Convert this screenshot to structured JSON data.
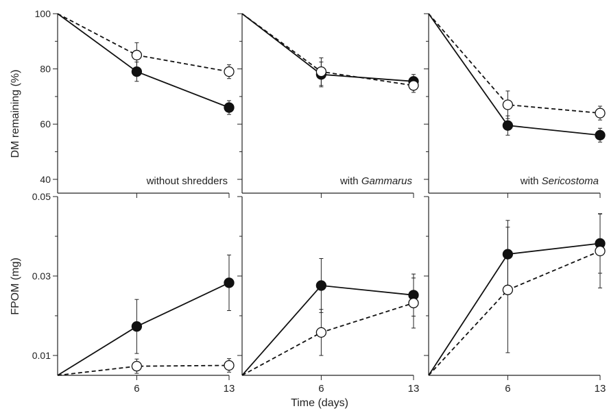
{
  "figure": {
    "xlabel": "Time (days)",
    "ylabel_top": "DM remaining (%)",
    "ylabel_bottom": "FPOM (mg)"
  },
  "chart_data": [
    {
      "type": "line",
      "row": "top",
      "col": 0,
      "label": "without shredders",
      "label_italic": "",
      "x": [
        0,
        6,
        13
      ],
      "xticks": [
        6,
        13
      ],
      "xlim": [
        0,
        13
      ],
      "ylim": [
        35,
        100
      ],
      "yticks": [
        40,
        60,
        80,
        100
      ],
      "ytick_labels": [
        "40",
        "60",
        "80",
        "100"
      ],
      "yminor": [
        50,
        70,
        90
      ],
      "series": [
        {
          "style": "solid-filled",
          "values": [
            100,
            79,
            66
          ],
          "err": [
            0,
            3.5,
            2.5
          ]
        },
        {
          "style": "dashed-open",
          "values": [
            100,
            85,
            79
          ],
          "err": [
            0,
            4.5,
            2.5
          ]
        }
      ]
    },
    {
      "type": "line",
      "row": "top",
      "col": 1,
      "label": "with ",
      "label_italic": "Gammarus",
      "x": [
        0,
        6,
        13
      ],
      "xticks": [
        6,
        13
      ],
      "xlim": [
        0,
        13
      ],
      "ylim": [
        35,
        100
      ],
      "yticks": [
        40,
        60,
        80,
        100
      ],
      "ytick_labels": [],
      "yminor": [
        50,
        70,
        90
      ],
      "series": [
        {
          "style": "solid-filled",
          "values": [
            100,
            78,
            75.5
          ],
          "err": [
            0,
            4.5,
            2.5
          ]
        },
        {
          "style": "dashed-open",
          "values": [
            100,
            79,
            74
          ],
          "err": [
            0,
            5,
            2.5
          ]
        }
      ]
    },
    {
      "type": "line",
      "row": "top",
      "col": 2,
      "label": "with ",
      "label_italic": "Sericostoma",
      "x": [
        0,
        6,
        13
      ],
      "xticks": [
        6,
        13
      ],
      "xlim": [
        0,
        13
      ],
      "ylim": [
        35,
        100
      ],
      "yticks": [
        40,
        60,
        80,
        100
      ],
      "ytick_labels": [],
      "yminor": [
        50,
        70,
        90
      ],
      "series": [
        {
          "style": "solid-filled",
          "values": [
            100,
            59.5,
            56
          ],
          "err": [
            0,
            3.5,
            2.5
          ]
        },
        {
          "style": "dashed-open",
          "values": [
            100,
            67,
            64
          ],
          "err": [
            0,
            5,
            2.5
          ]
        }
      ]
    },
    {
      "type": "line",
      "row": "bottom",
      "col": 0,
      "label": "",
      "label_italic": "",
      "x": [
        0,
        6,
        13
      ],
      "xticks": [
        6,
        13
      ],
      "xtick_labels": [
        "6",
        "13"
      ],
      "xlim": [
        0,
        13
      ],
      "ylim": [
        0.005,
        0.05
      ],
      "yticks": [
        0.01,
        0.03,
        0.05
      ],
      "ytick_labels": [
        "0.01",
        "0.03",
        "0.05"
      ],
      "yminor": [
        0.02,
        0.04
      ],
      "series": [
        {
          "style": "solid-filled",
          "values": [
            0.005,
            0.0173,
            0.0283
          ],
          "err": [
            0,
            0.0068,
            0.007
          ]
        },
        {
          "style": "dashed-open",
          "values": [
            0.005,
            0.0073,
            0.0075
          ],
          "err": [
            0,
            0.0018,
            0.0017
          ]
        }
      ]
    },
    {
      "type": "line",
      "row": "bottom",
      "col": 1,
      "label": "",
      "label_italic": "",
      "x": [
        0,
        6,
        13
      ],
      "xticks": [
        6,
        13
      ],
      "xtick_labels": [
        "6",
        "13"
      ],
      "xlim": [
        0,
        13
      ],
      "ylim": [
        0.005,
        0.05
      ],
      "yticks": [
        0.01,
        0.03,
        0.05
      ],
      "ytick_labels": [],
      "yminor": [
        0.02,
        0.04
      ],
      "series": [
        {
          "style": "solid-filled",
          "values": [
            0.005,
            0.0276,
            0.0252
          ],
          "err": [
            0,
            0.0068,
            0.0053
          ]
        },
        {
          "style": "dashed-open",
          "values": [
            0.005,
            0.0158,
            0.0232
          ],
          "err": [
            0,
            0.0058,
            0.0063
          ]
        }
      ]
    },
    {
      "type": "line",
      "row": "bottom",
      "col": 2,
      "label": "",
      "label_italic": "",
      "x": [
        0,
        6,
        13
      ],
      "xticks": [
        6,
        13
      ],
      "xtick_labels": [
        "6",
        "13"
      ],
      "xlim": [
        0,
        13
      ],
      "ylim": [
        0.005,
        0.05
      ],
      "yticks": [
        0.01,
        0.03,
        0.05
      ],
      "ytick_labels": [],
      "yminor": [
        0.02,
        0.04
      ],
      "series": [
        {
          "style": "solid-filled",
          "values": [
            0.005,
            0.0355,
            0.0382
          ],
          "err": [
            0,
            0.0085,
            0.0075
          ]
        },
        {
          "style": "dashed-open",
          "values": [
            0.005,
            0.0265,
            0.0363
          ],
          "err": [
            0,
            0.0158,
            0.0093
          ]
        }
      ]
    }
  ]
}
